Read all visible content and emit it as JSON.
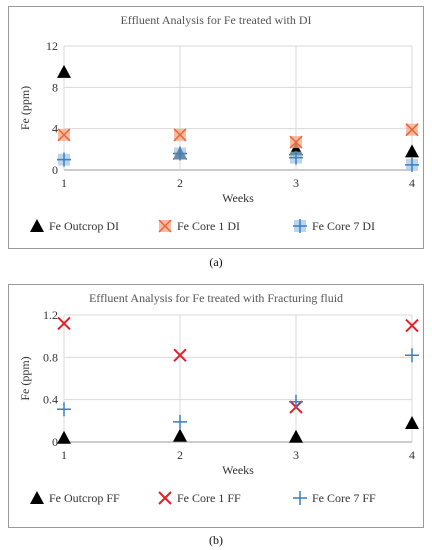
{
  "chart_data": [
    {
      "type": "scatter",
      "title": "Effluent Analysis for Fe treated with DI",
      "xlabel": "Weeks",
      "ylabel": "Fe (ppm)",
      "xlim": [
        1,
        4
      ],
      "ylim": [
        0,
        12
      ],
      "x_ticks": [
        "1",
        "2",
        "3",
        "4"
      ],
      "y_ticks": [
        "0",
        "4",
        "8",
        "12"
      ],
      "grid": true,
      "legend_position": "bottom",
      "sublabel": "(a)",
      "series": [
        {
          "name": "Fe Outcrop DI",
          "marker": "triangle",
          "color": "#000000",
          "x": [
            1,
            2,
            3,
            4
          ],
          "y": [
            9.5,
            1.6,
            2.0,
            1.8
          ]
        },
        {
          "name": "Fe Core 1 DI",
          "marker": "square-x",
          "color": "#f4a582",
          "x": [
            1,
            2,
            3,
            4
          ],
          "y": [
            3.4,
            3.4,
            2.7,
            3.9
          ]
        },
        {
          "name": "Fe Core 7 DI",
          "marker": "square-plus",
          "color": "#9ec3e6",
          "x": [
            1,
            2,
            3,
            4
          ],
          "y": [
            1.0,
            1.6,
            1.2,
            0.5
          ]
        }
      ]
    },
    {
      "type": "scatter",
      "title": "Effluent Analysis for Fe treated with Fracturing fluid",
      "xlabel": "Weeks",
      "ylabel": "Fe (ppm)",
      "xlim": [
        1,
        4
      ],
      "ylim": [
        0,
        1.2
      ],
      "x_ticks": [
        "1",
        "2",
        "3",
        "4"
      ],
      "y_ticks": [
        "0",
        "0.4",
        "0.8",
        "1.2"
      ],
      "grid": true,
      "legend_position": "bottom",
      "sublabel": "(b)",
      "series": [
        {
          "name": "Fe Outcrop FF",
          "marker": "triangle",
          "color": "#000000",
          "x": [
            1,
            2,
            3,
            4
          ],
          "y": [
            0.04,
            0.06,
            0.05,
            0.18
          ]
        },
        {
          "name": "Fe Core 1 FF",
          "marker": "x",
          "color": "#e0202a",
          "x": [
            1,
            2,
            3,
            4
          ],
          "y": [
            1.12,
            0.82,
            0.33,
            1.1
          ]
        },
        {
          "name": "Fe Core 7 FF",
          "marker": "plus",
          "color": "#3a7fc4",
          "x": [
            1,
            2,
            3,
            4
          ],
          "y": [
            0.31,
            0.19,
            0.38,
            0.82
          ]
        }
      ]
    }
  ]
}
